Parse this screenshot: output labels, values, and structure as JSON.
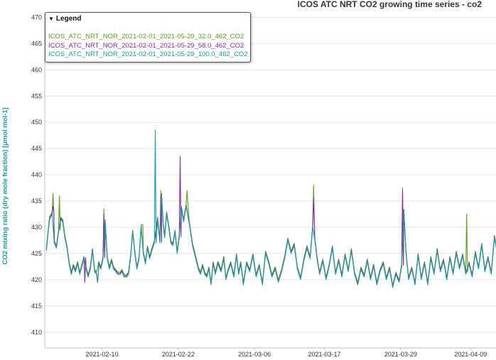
{
  "chart_data": {
    "type": "line",
    "title": "ICOS ATC NRT CO2 growing time series - co2",
    "ylabel": "CO2 mixing ratio (dry mole fraction) [µmol mol-1]",
    "ylim": [
      407,
      471
    ],
    "yticks": [
      410,
      415,
      420,
      425,
      430,
      435,
      440,
      445,
      450,
      455,
      460,
      465,
      470
    ],
    "xlim": [
      "2021-02-01",
      "2021-04-13"
    ],
    "xticks": [
      "2021-02-10",
      "2021-02-22",
      "2021-03-06",
      "2021-03-17",
      "2021-03-29",
      "2021-04-09"
    ],
    "grid": true,
    "legend_title": "Legend",
    "legend_placement": "top-left",
    "series": [
      {
        "name": "ICOS_ATC_NRT_NOR_2021-02-01_2021-05-29_32.0_462_CO2",
        "color": "#5aa01e"
      },
      {
        "name": "ICOS_ATC_NRT_NOR_2021-02-01_2021-05-29_58.0_462_CO2",
        "color": "#8b2aa0"
      },
      {
        "name": "ICOS_ATC_NRT_NOR_2021-02-01_2021-05-29_100.0_462_CO2",
        "color": "#1a9ca0"
      }
    ],
    "base_points": [
      [
        "2021-02-01",
        425.5
      ],
      [
        "2021-02-01",
        431.5
      ],
      [
        "2021-02-02",
        432.5
      ],
      [
        "2021-02-02",
        427.0
      ],
      [
        "2021-02-02",
        426.0
      ],
      [
        "2021-02-03",
        429.0
      ],
      [
        "2021-02-03",
        431.5
      ],
      [
        "2021-02-03",
        431.0
      ],
      [
        "2021-02-04",
        428.0
      ],
      [
        "2021-02-04",
        426.0
      ],
      [
        "2021-02-04",
        423.0
      ],
      [
        "2021-02-05",
        421.0
      ],
      [
        "2021-02-05",
        422.5
      ],
      [
        "2021-02-05",
        421.5
      ],
      [
        "2021-02-06",
        423.0
      ],
      [
        "2021-02-06",
        421.0
      ],
      [
        "2021-02-06",
        422.5
      ],
      [
        "2021-02-07",
        424.0
      ],
      [
        "2021-02-07",
        422.0
      ],
      [
        "2021-02-07",
        420.5
      ],
      [
        "2021-02-08",
        422.0
      ],
      [
        "2021-02-08",
        425.5
      ],
      [
        "2021-02-08",
        421.5
      ],
      [
        "2021-02-09",
        421.0
      ],
      [
        "2021-02-09",
        423.0
      ],
      [
        "2021-02-09",
        422.0
      ],
      [
        "2021-02-10",
        424.0
      ],
      [
        "2021-02-10",
        431.0
      ],
      [
        "2021-02-10",
        424.0
      ],
      [
        "2021-02-11",
        422.0
      ],
      [
        "2021-02-11",
        423.5
      ],
      [
        "2021-02-11",
        422.0
      ],
      [
        "2021-02-12",
        421.5
      ],
      [
        "2021-02-12",
        421.0
      ],
      [
        "2021-02-12",
        421.0
      ],
      [
        "2021-02-13",
        421.5
      ],
      [
        "2021-02-13",
        420.5
      ],
      [
        "2021-02-13",
        420.5
      ],
      [
        "2021-02-14",
        421.0
      ],
      [
        "2021-02-14",
        424.0
      ],
      [
        "2021-02-14",
        429.0
      ],
      [
        "2021-02-15",
        425.0
      ],
      [
        "2021-02-15",
        422.0
      ],
      [
        "2021-02-15",
        424.0
      ],
      [
        "2021-02-16",
        430.0
      ],
      [
        "2021-02-16",
        425.0
      ],
      [
        "2021-02-16",
        423.0
      ],
      [
        "2021-02-17",
        426.0
      ],
      [
        "2021-02-17",
        424.0
      ],
      [
        "2021-02-17",
        425.5
      ],
      [
        "2021-02-18",
        427.0
      ],
      [
        "2021-02-18",
        431.5
      ],
      [
        "2021-02-19",
        427.0
      ],
      [
        "2021-02-19",
        436.0
      ],
      [
        "2021-02-19",
        430.5
      ],
      [
        "2021-02-19",
        428.0
      ],
      [
        "2021-02-20",
        432.5
      ],
      [
        "2021-02-20",
        430.0
      ],
      [
        "2021-02-20",
        427.0
      ],
      [
        "2021-02-21",
        426.5
      ],
      [
        "2021-02-21",
        429.0
      ],
      [
        "2021-02-21",
        425.0
      ],
      [
        "2021-02-22",
        428.0
      ],
      [
        "2021-02-22",
        433.5
      ],
      [
        "2021-02-22",
        431.0
      ],
      [
        "2021-02-23",
        434.0
      ],
      [
        "2021-02-23",
        430.5
      ],
      [
        "2021-02-24",
        426.5
      ],
      [
        "2021-02-24",
        424.0
      ],
      [
        "2021-02-25",
        422.0
      ],
      [
        "2021-02-25",
        421.0
      ],
      [
        "2021-02-25",
        422.5
      ],
      [
        "2021-02-26",
        421.0
      ],
      [
        "2021-02-26",
        420.5
      ],
      [
        "2021-02-26",
        422.0
      ],
      [
        "2021-02-27",
        419.0
      ],
      [
        "2021-02-27",
        423.0
      ],
      [
        "2021-02-27",
        421.0
      ],
      [
        "2021-02-28",
        423.0
      ],
      [
        "2021-02-28",
        421.5
      ],
      [
        "2021-03-01",
        424.0
      ],
      [
        "2021-03-01",
        420.0
      ],
      [
        "2021-03-01",
        421.5
      ],
      [
        "2021-03-02",
        423.0
      ],
      [
        "2021-03-02",
        420.5
      ],
      [
        "2021-03-03",
        424.5
      ],
      [
        "2021-03-03",
        421.0
      ],
      [
        "2021-03-03",
        423.0
      ],
      [
        "2021-03-04",
        419.0
      ],
      [
        "2021-03-04",
        423.0
      ],
      [
        "2021-03-05",
        421.5
      ],
      [
        "2021-03-05",
        424.5
      ],
      [
        "2021-03-06",
        420.5
      ],
      [
        "2021-03-06",
        422.5
      ],
      [
        "2021-03-07",
        419.0
      ],
      [
        "2021-03-07",
        425.0
      ],
      [
        "2021-03-08",
        423.0
      ],
      [
        "2021-03-08",
        420.5
      ],
      [
        "2021-03-09",
        422.0
      ],
      [
        "2021-03-09",
        419.5
      ],
      [
        "2021-03-10",
        421.5
      ],
      [
        "2021-03-10",
        424.0
      ],
      [
        "2021-03-11",
        427.5
      ],
      [
        "2021-03-11",
        425.0
      ],
      [
        "2021-03-12",
        426.5
      ],
      [
        "2021-03-12",
        422.0
      ],
      [
        "2021-03-13",
        420.0
      ],
      [
        "2021-03-13",
        423.5
      ],
      [
        "2021-03-14",
        426.0
      ],
      [
        "2021-03-14",
        424.0
      ],
      [
        "2021-03-15",
        430.0
      ],
      [
        "2021-03-15",
        427.5
      ],
      [
        "2021-03-15",
        424.0
      ],
      [
        "2021-03-16",
        421.0
      ],
      [
        "2021-03-16",
        423.5
      ],
      [
        "2021-03-17",
        420.0
      ],
      [
        "2021-03-17",
        422.5
      ],
      [
        "2021-03-18",
        426.0
      ],
      [
        "2021-03-18",
        421.0
      ],
      [
        "2021-03-19",
        423.5
      ],
      [
        "2021-03-19",
        420.5
      ],
      [
        "2021-03-20",
        424.5
      ],
      [
        "2021-03-20",
        421.5
      ],
      [
        "2021-03-21",
        425.5
      ],
      [
        "2021-03-21",
        421.0
      ],
      [
        "2021-03-22",
        419.0
      ],
      [
        "2021-03-22",
        422.0
      ],
      [
        "2021-03-23",
        420.5
      ],
      [
        "2021-03-23",
        423.5
      ],
      [
        "2021-03-24",
        420.0
      ],
      [
        "2021-03-24",
        422.5
      ],
      [
        "2021-03-25",
        419.0
      ],
      [
        "2021-03-25",
        421.5
      ],
      [
        "2021-03-26",
        423.0
      ],
      [
        "2021-03-26",
        420.0
      ],
      [
        "2021-03-27",
        422.0
      ],
      [
        "2021-03-27",
        418.5
      ],
      [
        "2021-03-28",
        421.0
      ],
      [
        "2021-03-28",
        419.5
      ],
      [
        "2021-03-29",
        422.5
      ],
      [
        "2021-03-29",
        433.0
      ],
      [
        "2021-03-29",
        425.0
      ],
      [
        "2021-03-30",
        420.0
      ],
      [
        "2021-03-30",
        422.0
      ],
      [
        "2021-03-31",
        419.0
      ],
      [
        "2021-03-31",
        424.5
      ],
      [
        "2021-04-01",
        420.0
      ],
      [
        "2021-04-01",
        423.0
      ],
      [
        "2021-04-02",
        419.0
      ],
      [
        "2021-04-02",
        424.0
      ],
      [
        "2021-04-03",
        421.0
      ],
      [
        "2021-04-03",
        425.5
      ],
      [
        "2021-04-04",
        421.5
      ],
      [
        "2021-04-04",
        423.5
      ],
      [
        "2021-04-05",
        420.0
      ],
      [
        "2021-04-05",
        424.0
      ],
      [
        "2021-04-06",
        421.0
      ],
      [
        "2021-04-06",
        425.0
      ],
      [
        "2021-04-07",
        422.0
      ],
      [
        "2021-04-07",
        424.5
      ],
      [
        "2021-04-08",
        421.0
      ],
      [
        "2021-04-08",
        423.0
      ],
      [
        "2021-04-09",
        420.5
      ],
      [
        "2021-04-09",
        425.0
      ],
      [
        "2021-04-10",
        422.0
      ],
      [
        "2021-04-10",
        426.5
      ],
      [
        "2021-04-11",
        421.5
      ],
      [
        "2021-04-11",
        424.0
      ],
      [
        "2021-04-12",
        421.0
      ],
      [
        "2021-04-12",
        428.0
      ],
      [
        "2021-04-13",
        423.0
      ]
    ],
    "spikes": [
      {
        "x": "2021-02-02",
        "series": 0,
        "y": 436.5
      },
      {
        "x": "2021-02-02",
        "series": 1,
        "y": 434.0
      },
      {
        "x": "2021-02-03",
        "series": 0,
        "y": 436.0
      },
      {
        "x": "2021-02-10",
        "series": 0,
        "y": 433.5
      },
      {
        "x": "2021-02-10",
        "series": 1,
        "y": 432.5
      },
      {
        "x": "2021-02-16",
        "series": 0,
        "y": 430.5
      },
      {
        "x": "2021-02-18",
        "series": 2,
        "y": 448.5
      },
      {
        "x": "2021-02-18",
        "series": 2,
        "y": 447.0
      },
      {
        "x": "2021-02-19",
        "series": 0,
        "y": 437.0
      },
      {
        "x": "2021-02-19",
        "series": 1,
        "y": 436.0
      },
      {
        "x": "2021-02-22",
        "series": 1,
        "y": 443.5
      },
      {
        "x": "2021-02-23",
        "series": 0,
        "y": 437.0
      },
      {
        "x": "2021-03-15",
        "series": 0,
        "y": 438.0
      },
      {
        "x": "2021-03-15",
        "series": 1,
        "y": 435.5
      },
      {
        "x": "2021-03-29",
        "series": 0,
        "y": 437.5
      },
      {
        "x": "2021-03-29",
        "series": 1,
        "y": 437.0
      },
      {
        "x": "2021-04-08",
        "series": 0,
        "y": 432.5
      },
      {
        "x": "2021-04-13",
        "series": 0,
        "y": 431.5
      }
    ],
    "dips": [
      {
        "x": "2021-02-07",
        "series": 1,
        "y": 419.5
      },
      {
        "x": "2021-02-09",
        "series": 1,
        "y": 419.5
      },
      {
        "x": "2021-02-09",
        "series": 2,
        "y": 419.5
      }
    ]
  }
}
